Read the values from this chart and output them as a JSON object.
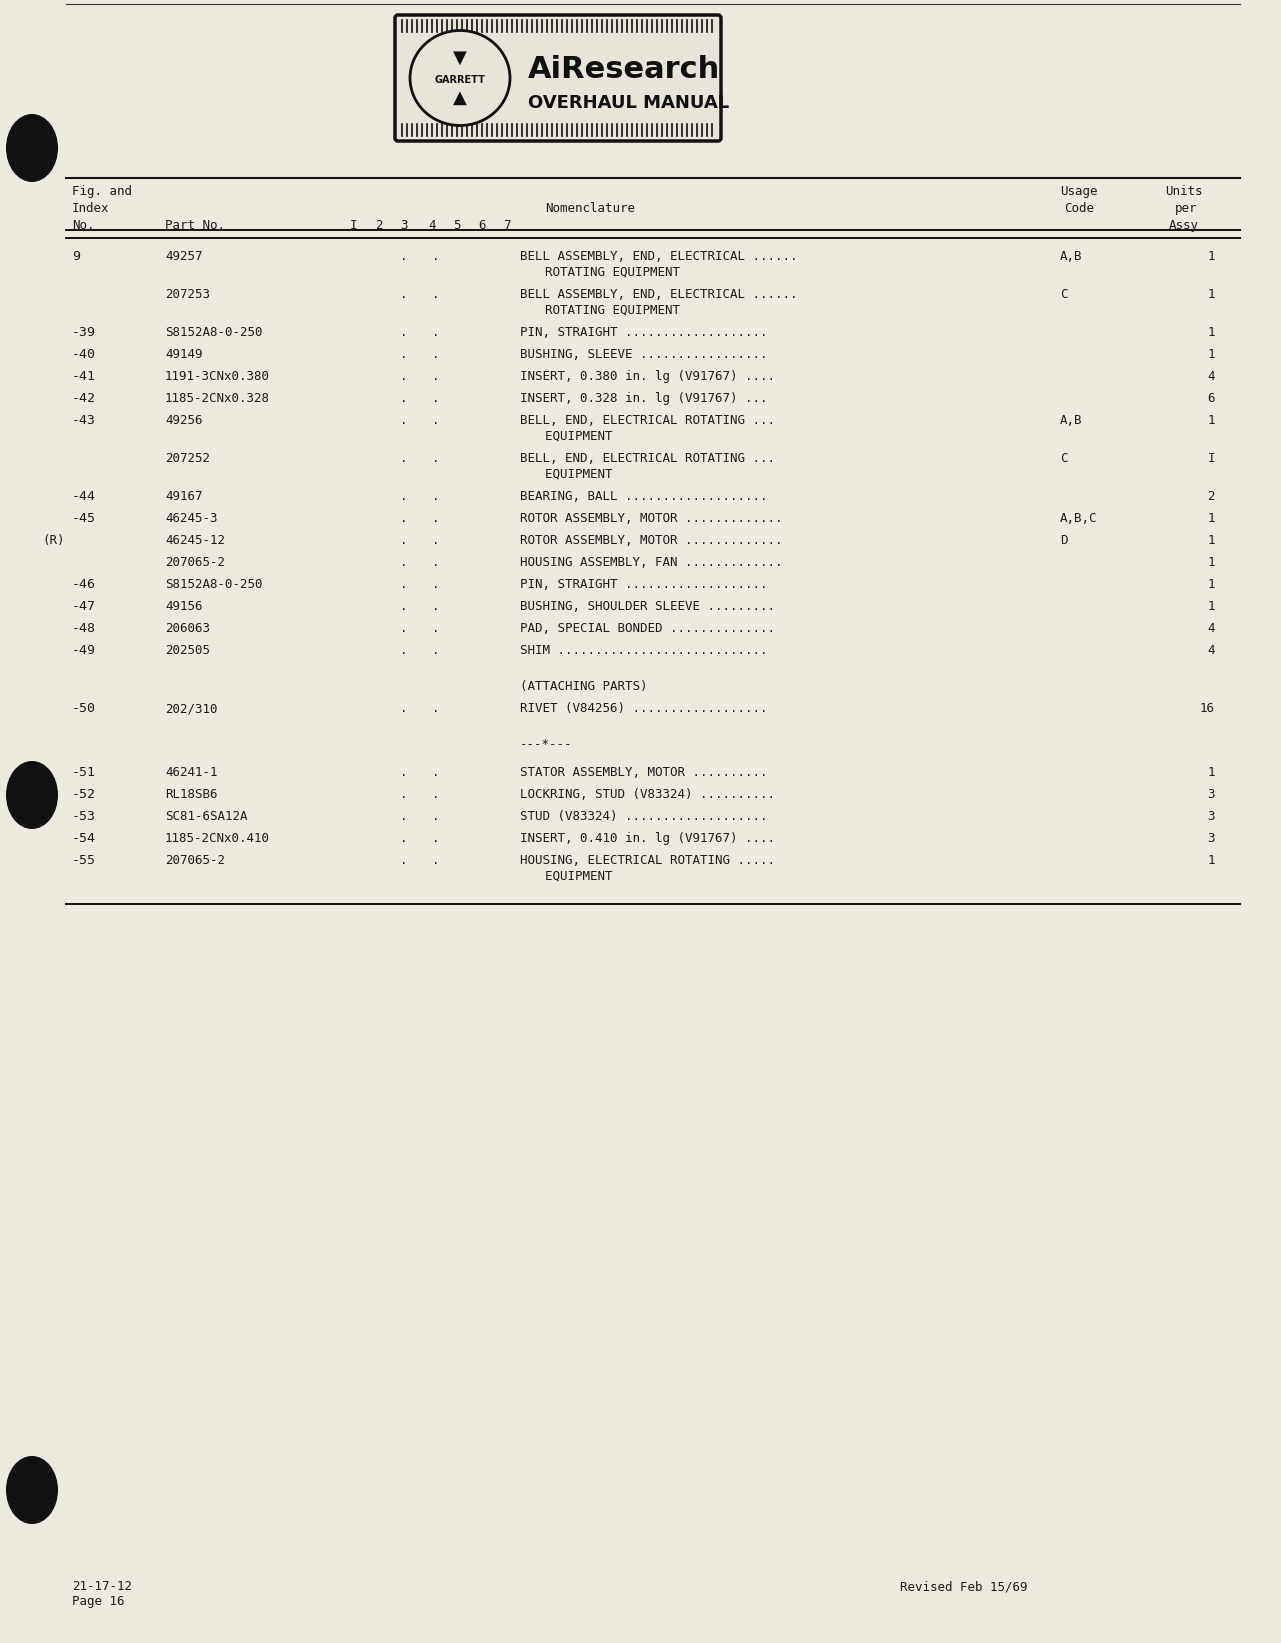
{
  "page_bg": "#ede9df",
  "rows": [
    {
      "fig": "9",
      "part": "49257",
      "dots": ". .",
      "nom": "BELL ASSEMBLY, END, ELECTRICAL ......",
      "nom2": "  ROTATING EQUIPMENT",
      "usage": "A,B",
      "qty": "1"
    },
    {
      "fig": "",
      "part": "207253",
      "dots": ". .",
      "nom": "BELL ASSEMBLY, END, ELECTRICAL ......",
      "nom2": "  ROTATING EQUIPMENT",
      "usage": "C",
      "qty": "1"
    },
    {
      "fig": "-39",
      "part": "S8152A8-0-250",
      "dots": ". .",
      "nom": "PIN, STRAIGHT ...................",
      "nom2": "",
      "usage": "",
      "qty": "1"
    },
    {
      "fig": "-40",
      "part": "49149",
      "dots": ". .",
      "nom": "BUSHING, SLEEVE .................",
      "nom2": "",
      "usage": "",
      "qty": "1"
    },
    {
      "fig": "-41",
      "part": "1191-3CNx0.380",
      "dots": ". .",
      "nom": "INSERT, 0.380 in. lg (V91767) ....",
      "nom2": "",
      "usage": "",
      "qty": "4"
    },
    {
      "fig": "-42",
      "part": "1185-2CNx0.328",
      "dots": ". .",
      "nom": "INSERT, 0.328 in. lg (V91767) ...",
      "nom2": "",
      "usage": "",
      "qty": "6"
    },
    {
      "fig": "-43",
      "part": "49256",
      "dots": ". .",
      "nom": "BELL, END, ELECTRICAL ROTATING ...",
      "nom2": "  EQUIPMENT",
      "usage": "A,B",
      "qty": "1"
    },
    {
      "fig": "",
      "part": "207252",
      "dots": ". .",
      "nom": "BELL, END, ELECTRICAL ROTATING ...",
      "nom2": "  EQUIPMENT",
      "usage": "C",
      "qty": "I"
    },
    {
      "fig": "-44",
      "part": "49167",
      "dots": ". .",
      "nom": "BEARING, BALL ...................",
      "nom2": "",
      "usage": "",
      "qty": "2"
    },
    {
      "fig": "-45",
      "part": "46245-3",
      "dots": ". .",
      "nom": "ROTOR ASSEMBLY, MOTOR .............",
      "nom2": "",
      "usage": "A,B,C",
      "qty": "1"
    },
    {
      "fig": "(R)",
      "part": "46245-12",
      "dots": ". .",
      "nom": "ROTOR ASSEMBLY, MOTOR .............",
      "nom2": "",
      "usage": "D",
      "qty": "1"
    },
    {
      "fig": "",
      "part": "207065-2",
      "dots": ". .",
      "nom": "HOUSING ASSEMBLY, FAN .............",
      "nom2": "",
      "usage": "",
      "qty": "1"
    },
    {
      "fig": "-46",
      "part": "S8152A8-0-250",
      "dots": ". .",
      "nom": "PIN, STRAIGHT ...................",
      "nom2": "",
      "usage": "",
      "qty": "1"
    },
    {
      "fig": "-47",
      "part": "49156",
      "dots": ". .",
      "nom": "BUSHING, SHOULDER SLEEVE .........",
      "nom2": "",
      "usage": "",
      "qty": "1"
    },
    {
      "fig": "-48",
      "part": "206063",
      "dots": ". .",
      "nom": "PAD, SPECIAL BONDED ..............",
      "nom2": "",
      "usage": "",
      "qty": "4"
    },
    {
      "fig": "-49",
      "part": "202505",
      "dots": ". .",
      "nom": "SHIM ............................",
      "nom2": "",
      "usage": "",
      "qty": "4"
    },
    {
      "fig": "",
      "part": "",
      "dots": "",
      "nom": "(ATTACHING PARTS)",
      "nom2": "",
      "usage": "",
      "qty": ""
    },
    {
      "fig": "-50",
      "part": "202/310",
      "dots": ". .",
      "nom": "RIVET (V84256) ..................",
      "nom2": "",
      "usage": "",
      "qty": "16"
    },
    {
      "fig": "",
      "part": "",
      "dots": "",
      "nom": "---*---",
      "nom2": "",
      "usage": "",
      "qty": ""
    },
    {
      "fig": "-51",
      "part": "46241-1",
      "dots": ". .",
      "nom": "STATOR ASSEMBLY, MOTOR ..........",
      "nom2": "",
      "usage": "",
      "qty": "1"
    },
    {
      "fig": "-52",
      "part": "RL18SB6",
      "dots": ". .",
      "nom": "LOCKRING, STUD (V83324) ..........",
      "nom2": "",
      "usage": "",
      "qty": "3"
    },
    {
      "fig": "-53",
      "part": "SC81-6SA12A",
      "dots": ". .",
      "nom": "STUD (V83324) ...................",
      "nom2": "",
      "usage": "",
      "qty": "3"
    },
    {
      "fig": "-54",
      "part": "1185-2CNx0.410",
      "dots": ". .",
      "nom": "INSERT, 0.410 in. lg (V91767) ....",
      "nom2": "",
      "usage": "",
      "qty": "3"
    },
    {
      "fig": "-55",
      "part": "207065-2",
      "dots": ". .",
      "nom": "HOUSING, ELECTRICAL ROTATING .....",
      "nom2": "  EQUIPMENT",
      "usage": "",
      "qty": "1"
    }
  ],
  "footer_left1": "21-17-12",
  "footer_left2": "Page 16",
  "footer_right": "Revised Feb 15/69"
}
